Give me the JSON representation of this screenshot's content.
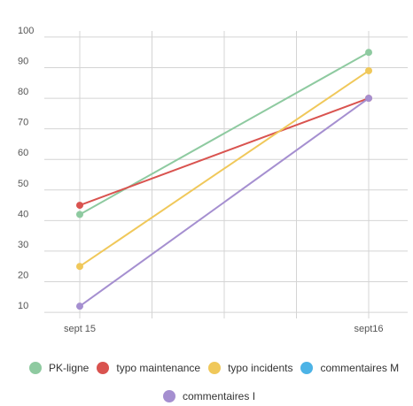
{
  "chart_data": {
    "type": "line",
    "categories": [
      "sept 15",
      "sept16"
    ],
    "ylim": [
      8,
      102
    ],
    "yticks": [
      10,
      20,
      30,
      40,
      50,
      60,
      70,
      80,
      90,
      100
    ],
    "grid": true,
    "legend_position": "bottom",
    "series": [
      {
        "name": "PK-ligne",
        "color": "#8ecaa0",
        "values": [
          42,
          95
        ]
      },
      {
        "name": "typo maintenance",
        "color": "#d9534f",
        "values": [
          45,
          80
        ]
      },
      {
        "name": "typo incidents",
        "color": "#f0c85a",
        "values": [
          25,
          89
        ]
      },
      {
        "name": "commentaires M",
        "color": "#4cb3e6",
        "values": [
          null,
          null
        ]
      },
      {
        "name": "commentaires I",
        "color": "#a58fd0",
        "values": [
          12,
          80
        ]
      }
    ]
  }
}
